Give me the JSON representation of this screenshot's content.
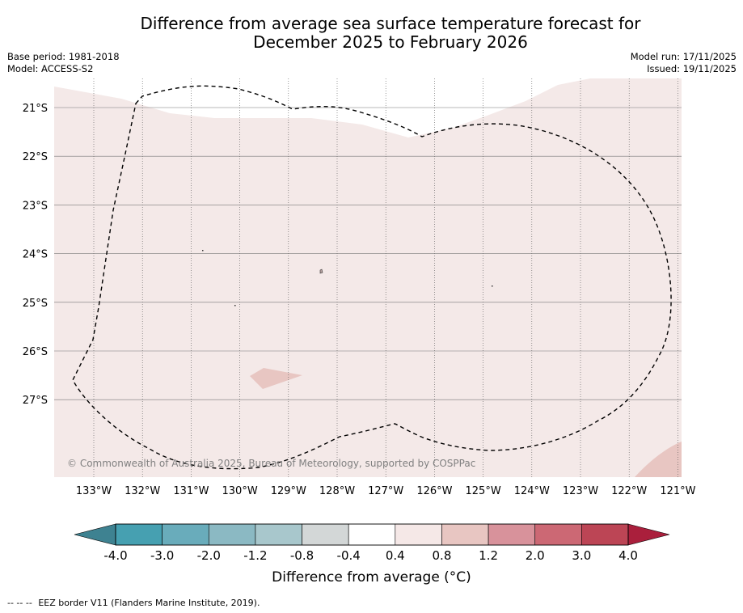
{
  "title": {
    "line1": "Difference from average sea surface temperature forecast for",
    "line2": "December 2025 to February 2026"
  },
  "meta": {
    "base_period": "Base period: 1981-2018",
    "model": "Model: ACCESS-S2",
    "model_run": "Model run: 17/11/2025",
    "issued": "Issued: 19/11/2025"
  },
  "map": {
    "lat_labels": [
      "21°S",
      "22°S",
      "23°S",
      "24°S",
      "25°S",
      "26°S",
      "27°S"
    ],
    "lon_labels": [
      "133°W",
      "132°W",
      "131°W",
      "130°W",
      "129°W",
      "128°W",
      "127°W",
      "126°W",
      "125°W",
      "124°W",
      "123°W",
      "122°W",
      "121°W"
    ],
    "copyright": "© Commonwealth of Australia 2025, Bureau of Meteorology, supported by COSPPac",
    "background_color": "#f4e9e8",
    "warm_patch_color": "#e8c6c2",
    "eez_line_color": "#000000"
  },
  "colorbar": {
    "title": "Difference from average (°C)",
    "tick_labels": [
      "-4.0",
      "-3.0",
      "-2.0",
      "-1.2",
      "-0.8",
      "-0.4",
      "0.4",
      "0.8",
      "1.2",
      "2.0",
      "3.0",
      "4.0"
    ],
    "colors": [
      "#46a0b1",
      "#69acbb",
      "#8bb9c3",
      "#a8c7cc",
      "#d3d7d7",
      "#ffffff",
      "#f5e8e7",
      "#e8c6c2",
      "#d8929b",
      "#cc6874",
      "#bc4555"
    ],
    "low_extend_color": "#3e8291",
    "high_extend_color": "#aa1f3c"
  },
  "footnote": {
    "dashes": "-- -- --",
    "text": "EEZ border V11 (Flanders Marine Institute, 2019)."
  }
}
